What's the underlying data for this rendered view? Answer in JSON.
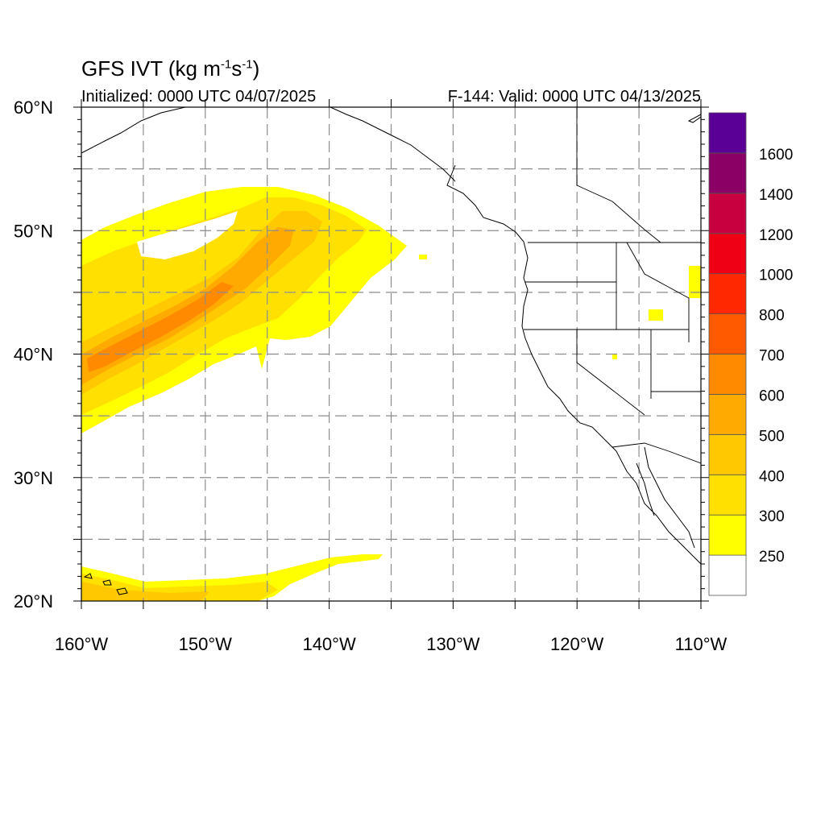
{
  "title": {
    "main": "GFS IVT (kg m",
    "exp1": "-1",
    "mid": "s",
    "exp2": "-1",
    "close": ")"
  },
  "initialized": "Initialized: 0000 UTC 04/07/2025",
  "valid": "F-144: Valid: 0000 UTC 04/13/2025",
  "map": {
    "lon_range": [
      -160,
      -110
    ],
    "lat_range": [
      20,
      60
    ],
    "gridlines": "dashed, every 5 degrees",
    "lon_labels": [
      "160°W",
      "150°W",
      "140°W",
      "130°W",
      "120°W",
      "110°W"
    ],
    "lat_labels": [
      "20°N",
      "30°N",
      "40°N",
      "50°N",
      "60°N"
    ]
  },
  "colorbar": {
    "labels": [
      "250",
      "300",
      "400",
      "500",
      "600",
      "700",
      "800",
      "1000",
      "1200",
      "1400",
      "1600"
    ],
    "colors": [
      "#ffffff",
      "#ffff00",
      "#ffe000",
      "#ffc800",
      "#ffaa00",
      "#ff8a00",
      "#ff5a00",
      "#ff2800",
      "#ef0014",
      "#c80040",
      "#8a0064",
      "#5a0096"
    ]
  }
}
